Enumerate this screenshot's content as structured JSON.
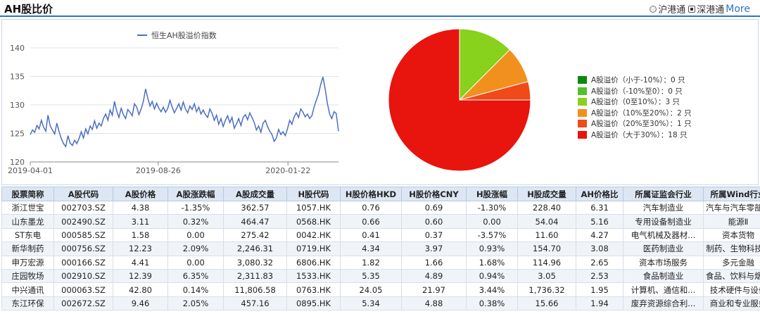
{
  "header": {
    "title": "AH股比价",
    "options": [
      {
        "label": "沪港通",
        "checked": false
      },
      {
        "label": "深港通",
        "checked": true
      }
    ],
    "more_label": "More"
  },
  "line_chart": {
    "type": "line",
    "series_name": "恒生AH股溢价指数",
    "y_ticks": [
      120,
      125,
      130,
      135,
      140
    ],
    "ylim": [
      120,
      140
    ],
    "x_ticks": [
      "2019-04-01",
      "2019-08-26",
      "2020-01-22"
    ],
    "x_start": "2019-04-01",
    "x_end": "2020-03-20",
    "values": [
      124.8,
      125.6,
      125.2,
      126.4,
      125.8,
      127.3,
      126.1,
      125.4,
      128.2,
      126.3,
      125.6,
      124.9,
      126.8,
      125.3,
      124.1,
      123.2,
      122.7,
      124.6,
      123.3,
      122.9,
      123.8,
      123.2,
      124.1,
      125.3,
      124.2,
      125.8,
      124.9,
      126.3,
      125.7,
      127.2,
      125.9,
      126.8,
      126.3,
      127.6,
      128.4,
      127.3,
      129.1,
      128.2,
      130.6,
      128.9,
      127.8,
      129.4,
      128.3,
      127.6,
      129.2,
      128.7,
      128.1,
      130.2,
      129.6,
      128.3,
      129.3,
      130.6,
      132.8,
      131.2,
      129.8,
      130.6,
      129.3,
      130.3,
      129.4,
      128.8,
      129.6,
      128.7,
      129.4,
      130.8,
      129.6,
      128.6,
      129.4,
      130.2,
      129.1,
      130.5,
      129.3,
      128.6,
      129.8,
      129.2,
      130.2,
      128.8,
      129.6,
      128.4,
      129.1,
      128.3,
      127.8,
      129.3,
      128.5,
      127.3,
      128.2,
      126.6,
      127.6,
      126.2,
      127.3,
      128.1,
      126.9,
      127.8,
      125.9,
      126.7,
      127.6,
      126.4,
      127.8,
      128.3,
      127.4,
      128.6,
      127.8,
      126.9,
      125.6,
      126.3,
      125.2,
      126.8,
      127.3,
      126.2,
      125.4,
      124.8,
      123.6,
      124.2,
      125.7,
      124.8,
      125.3,
      124.6,
      125.8,
      127.3,
      126.6,
      127.9,
      128.6,
      127.8,
      129.3,
      128.7,
      127.9,
      128.4,
      127.6,
      128.1,
      129.6,
      130.8,
      131.9,
      133.6,
      134.9,
      132.8,
      130.3,
      128.4,
      127.6,
      128.8,
      128.5,
      125.4
    ]
  },
  "pie_chart": {
    "type": "pie",
    "slices": [
      {
        "label": "A股溢价（小于-10%）：0 只",
        "value": 0,
        "color": "#0a8a0a"
      },
      {
        "label": "A股溢价（-10%至0）：0 只",
        "value": 0,
        "color": "#55c12a"
      },
      {
        "label": "A股溢价（0至10%）：3 只",
        "value": 3,
        "color": "#88d11c"
      },
      {
        "label": "A股溢价（10%至20%）：2 只",
        "value": 2,
        "color": "#f2901e"
      },
      {
        "label": "A股溢价（20%至30%）：1 只",
        "value": 1,
        "color": "#f04a1a"
      },
      {
        "label": "A股溢价（大于30%）：18 只",
        "value": 18,
        "color": "#e8140e"
      }
    ]
  },
  "table": {
    "columns": [
      "股票简称",
      "A股代码",
      "A股价格",
      "A股涨跌幅",
      "A股成交量",
      "H股代码",
      "H股价格HKD",
      "H股价格CNY",
      "H股涨幅",
      "H股成交量",
      "AH价格比",
      "所属证监会行业",
      "所属Wind行业"
    ],
    "rows": [
      {
        "name": "浙江世宝",
        "a_code": "002703.SZ",
        "a_price": "4.38",
        "a_chg": "-1.35%",
        "a_chg_dir": "down",
        "a_vol": "362.57",
        "h_code": "1057.HK",
        "h_hkd": "0.76",
        "h_cny": "0.69",
        "h_chg": "-1.30%",
        "h_chg_dir": "down",
        "h_vol": "228.40",
        "ah_ratio": "6.31",
        "csrc_ind": "汽车制造业",
        "wind_ind": "汽车与汽车零部件"
      },
      {
        "name": "山东墨龙",
        "a_code": "002490.SZ",
        "a_price": "3.11",
        "a_chg": "0.32%",
        "a_chg_dir": "up",
        "a_vol": "464.47",
        "h_code": "0568.HK",
        "h_hkd": "0.66",
        "h_cny": "0.60",
        "h_chg": "0.00",
        "h_chg_dir": "neutral",
        "h_vol": "54.04",
        "ah_ratio": "5.16",
        "csrc_ind": "专用设备制造业",
        "wind_ind": "能源Ⅱ"
      },
      {
        "name": "ST东电",
        "a_code": "000585.SZ",
        "a_price": "1.58",
        "a_chg": "0.00",
        "a_chg_dir": "neutral",
        "a_vol": "275.42",
        "h_code": "0042.HK",
        "h_hkd": "0.41",
        "h_cny": "0.37",
        "h_chg": "-3.57%",
        "h_chg_dir": "down",
        "h_vol": "11.60",
        "ah_ratio": "4.27",
        "csrc_ind": "电气机械及器材...",
        "wind_ind": "资本货物"
      },
      {
        "name": "新华制药",
        "a_code": "000756.SZ",
        "a_price": "12.23",
        "a_chg": "2.09%",
        "a_chg_dir": "up",
        "a_vol": "2,246.31",
        "h_code": "0719.HK",
        "h_hkd": "4.34",
        "h_cny": "3.97",
        "h_chg": "0.93%",
        "h_chg_dir": "up",
        "h_vol": "154.70",
        "ah_ratio": "3.08",
        "csrc_ind": "医药制造业",
        "wind_ind": "制药、生物科技..."
      },
      {
        "name": "申万宏源",
        "a_code": "000166.SZ",
        "a_price": "4.41",
        "a_chg": "0.00",
        "a_chg_dir": "neutral",
        "a_vol": "3,080.32",
        "h_code": "6806.HK",
        "h_hkd": "1.82",
        "h_cny": "1.66",
        "h_chg": "1.68%",
        "h_chg_dir": "up",
        "h_vol": "114.96",
        "ah_ratio": "2.65",
        "csrc_ind": "资本市场服务",
        "wind_ind": "多元金融"
      },
      {
        "name": "庄园牧场",
        "a_code": "002910.SZ",
        "a_price": "12.39",
        "a_chg": "6.35%",
        "a_chg_dir": "up",
        "a_vol": "2,311.83",
        "h_code": "1533.HK",
        "h_hkd": "5.35",
        "h_cny": "4.89",
        "h_chg": "0.94%",
        "h_chg_dir": "up",
        "h_vol": "3.05",
        "ah_ratio": "2.53",
        "csrc_ind": "食品制造业",
        "wind_ind": "食品、饮料与烟草"
      },
      {
        "name": "中兴通讯",
        "a_code": "000063.SZ",
        "a_price": "42.80",
        "a_chg": "0.14%",
        "a_chg_dir": "up",
        "a_vol": "11,806.58",
        "h_code": "0763.HK",
        "h_hkd": "24.05",
        "h_cny": "21.97",
        "h_chg": "3.44%",
        "h_chg_dir": "up",
        "h_vol": "1,736.32",
        "ah_ratio": "1.95",
        "csrc_ind": "计算机、通信和...",
        "wind_ind": "技术硬件与设备"
      },
      {
        "name": "东江环保",
        "a_code": "002672.SZ",
        "a_price": "9.46",
        "a_chg": "2.05%",
        "a_chg_dir": "up",
        "a_vol": "457.16",
        "h_code": "0895.HK",
        "h_hkd": "5.34",
        "h_cny": "4.88",
        "h_chg": "0.38%",
        "h_chg_dir": "up",
        "h_vol": "15.66",
        "ah_ratio": "1.94",
        "csrc_ind": "废弃资源综合利...",
        "wind_ind": "商业和专业服务"
      }
    ]
  }
}
